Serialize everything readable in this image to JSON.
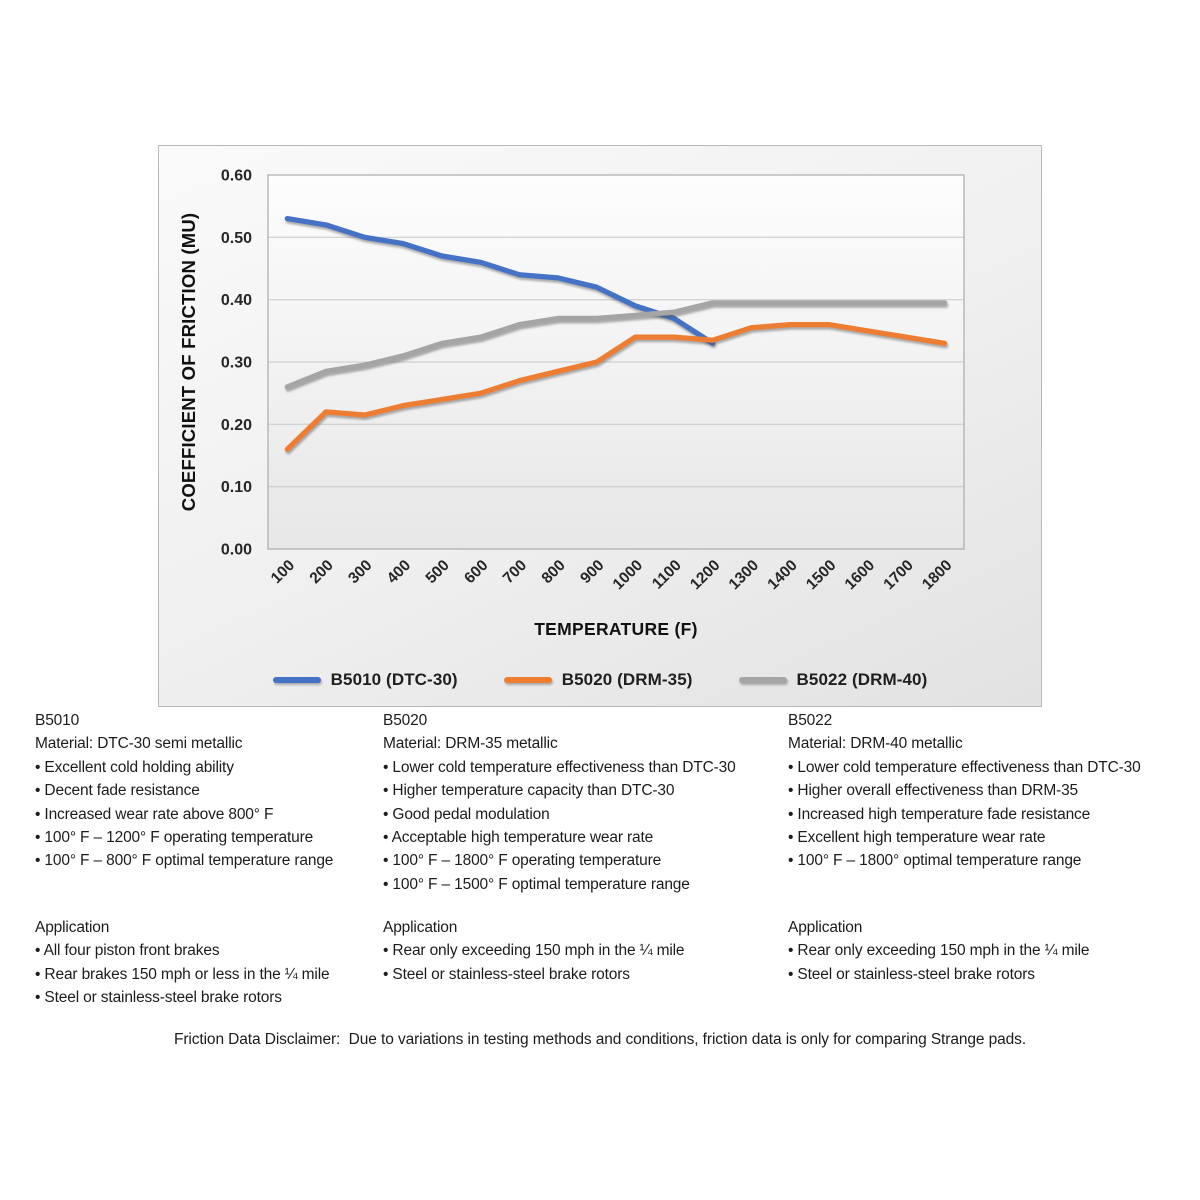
{
  "bullet": "•",
  "chart_data": {
    "type": "line",
    "title": "",
    "xlabel": "TEMPERATURE (F)",
    "ylabel": "COEFFICIENT OF FRICTION (MU)",
    "categories": [
      "100",
      "200",
      "300",
      "400",
      "500",
      "600",
      "700",
      "800",
      "900",
      "1000",
      "1100",
      "1200",
      "1300",
      "1400",
      "1500",
      "1600",
      "1700",
      "1800"
    ],
    "ylim": [
      0.0,
      0.6
    ],
    "ytick_labels": [
      "0.00",
      "0.10",
      "0.20",
      "0.30",
      "0.40",
      "0.50",
      "0.60"
    ],
    "grid": true,
    "legend_position": "bottom",
    "series": [
      {
        "name": "B5010 (DTC-30)",
        "color": "#4472C4",
        "values": [
          0.53,
          0.52,
          0.5,
          0.49,
          0.47,
          0.46,
          0.44,
          0.435,
          0.42,
          0.39,
          0.37,
          0.33
        ]
      },
      {
        "name": "B5020 (DRM-35)",
        "color": "#ED7D31",
        "values": [
          0.16,
          0.22,
          0.215,
          0.23,
          0.24,
          0.25,
          0.27,
          0.285,
          0.3,
          0.34,
          0.34,
          0.335,
          0.355,
          0.36,
          0.36,
          0.35,
          0.34,
          0.33
        ]
      },
      {
        "name": "B5022 (DRM-40)",
        "color": "#A5A5A5",
        "values": [
          0.26,
          0.285,
          0.295,
          0.31,
          0.33,
          0.34,
          0.36,
          0.37,
          0.37,
          0.375,
          0.38,
          0.395,
          0.395,
          0.395,
          0.395,
          0.395,
          0.395,
          0.395
        ]
      }
    ]
  },
  "product_columns": [
    {
      "model": "B5010",
      "material": "Material: DTC-30 semi metallic",
      "features": [
        "Excellent cold holding ability",
        "Decent fade resistance",
        "Increased wear rate above 800° F",
        "100° F – 1200° F operating temperature",
        "100° F – 800° F optimal temperature range"
      ],
      "application_title": "Application",
      "applications": [
        "All four piston front brakes",
        "Rear brakes 150 mph or less in the ¼ mile",
        "Steel or stainless-steel brake rotors"
      ]
    },
    {
      "model": "B5020",
      "material": "Material: DRM-35 metallic",
      "features": [
        "Lower cold temperature effectiveness than DTC-30",
        "Higher temperature capacity than DTC-30",
        "Good pedal modulation",
        "Acceptable high temperature wear rate",
        "100° F – 1800° F operating temperature",
        "100° F – 1500° F optimal temperature range"
      ],
      "application_title": "Application",
      "applications": [
        "Rear only exceeding 150 mph in the ¼ mile",
        "Steel or stainless-steel brake rotors"
      ]
    },
    {
      "model": "B5022",
      "material": "Material: DRM-40 metallic",
      "features": [
        "Lower cold temperature effectiveness than DTC-30",
        "Higher overall effectiveness than DRM-35",
        "Increased high temperature fade resistance",
        "Excellent high temperature wear rate",
        "100° F – 1800° optimal temperature range"
      ],
      "application_title": "Application",
      "applications": [
        "Rear only exceeding 150 mph in the ¼ mile",
        "Steel or stainless-steel brake rotors"
      ]
    }
  ],
  "disclaimer": "Friction Data Disclaimer:  Due to variations in testing methods and conditions, friction data is only for comparing Strange pads."
}
